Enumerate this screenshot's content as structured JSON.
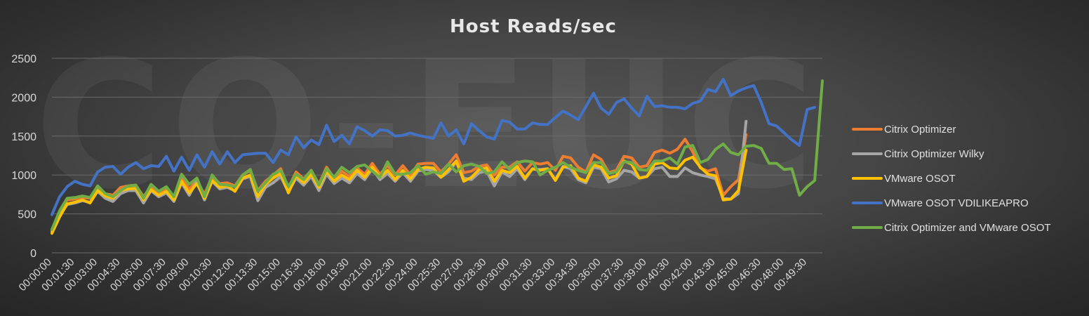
{
  "chart_data": {
    "type": "line",
    "title": "Host Reads/sec",
    "ylim": [
      0,
      2500
    ],
    "yticks": [
      0,
      500,
      1000,
      1500,
      2000,
      2500
    ],
    "xticks": [
      "00:00:00",
      "00:01:30",
      "00:03:00",
      "00:04:30",
      "00:06:00",
      "00:07:30",
      "00:09:00",
      "00:10:30",
      "00:12:00",
      "00:13:30",
      "00:15:00",
      "00:16:30",
      "00:18:00",
      "00:19:30",
      "00:21:00",
      "00:22:30",
      "00:24:00",
      "00:25:30",
      "00:27:00",
      "00:28:30",
      "00:30:00",
      "00:31:30",
      "00:33:00",
      "00:34:30",
      "00:36:00",
      "00:37:30",
      "00:39:00",
      "00:40:30",
      "00:42:00",
      "00:43:30",
      "00:45:00",
      "00:46:30",
      "00:48:00",
      "00:49:30"
    ],
    "x_start_seconds": 0,
    "x_step_seconds": 30,
    "legend_position": "right",
    "grid": true,
    "series": [
      {
        "name": "Citrix Optimizer",
        "color": "#ED7D31",
        "values": [
          280,
          520,
          680,
          690,
          710,
          700,
          830,
          760,
          740,
          840,
          860,
          870,
          720,
          850,
          770,
          830,
          720,
          960,
          820,
          930,
          750,
          980,
          890,
          900,
          860,
          1000,
          1060,
          800,
          920,
          1000,
          1080,
          830,
          1040,
          950,
          1060,
          880,
          1100,
          960,
          1050,
          980,
          1090,
          1010,
          1150,
          1010,
          1120,
          1000,
          1120,
          1000,
          1140,
          1150,
          1150,
          1040,
          1140,
          1260,
          1030,
          1050,
          1110,
          1130,
          1000,
          1100,
          1100,
          1170,
          1050,
          1160,
          1140,
          1160,
          1060,
          1240,
          1220,
          1100,
          1040,
          1260,
          1200,
          1030,
          1060,
          1240,
          1220,
          1100,
          1120,
          1290,
          1320,
          1280,
          1330,
          1460,
          1300,
          1090,
          1050,
          1080,
          740,
          850,
          940,
          1520
        ]
      },
      {
        "name": "Citrix Optimizer Wilky",
        "color": "#A5A5A5",
        "values": [
          270,
          480,
          620,
          640,
          670,
          650,
          790,
          700,
          660,
          760,
          800,
          800,
          640,
          800,
          720,
          770,
          660,
          900,
          740,
          920,
          680,
          920,
          820,
          840,
          800,
          950,
          980,
          670,
          840,
          900,
          980,
          780,
          960,
          870,
          980,
          800,
          1010,
          890,
          960,
          900,
          1020,
          940,
          1080,
          940,
          1020,
          920,
          1030,
          920,
          1050,
          1070,
          1060,
          970,
          1040,
          1170,
          960,
          940,
          1030,
          1050,
          860,
          1040,
          980,
          1080,
          940,
          1080,
          1070,
          1080,
          940,
          1110,
          1080,
          940,
          900,
          1100,
          1080,
          910,
          950,
          1060,
          1040,
          960,
          980,
          1080,
          1100,
          980,
          980,
          1090,
          1030,
          1000,
          980,
          950,
          700,
          690,
          760,
          1690
        ]
      },
      {
        "name": "VMware OSOT",
        "color": "#FFC000",
        "values": [
          250,
          460,
          630,
          650,
          680,
          640,
          800,
          730,
          700,
          800,
          820,
          830,
          680,
          810,
          740,
          790,
          680,
          920,
          770,
          890,
          700,
          930,
          840,
          860,
          790,
          960,
          1000,
          720,
          880,
          960,
          1020,
          770,
          990,
          900,
          1010,
          840,
          1050,
          920,
          1000,
          940,
          1060,
          970,
          1100,
          970,
          1060,
          940,
          1060,
          950,
          1070,
          1100,
          1090,
          970,
          1070,
          1180,
          920,
          970,
          1070,
          1090,
          920,
          1060,
          1030,
          1110,
          960,
          1080,
          1060,
          1080,
          930,
          1100,
          1120,
          960,
          920,
          1130,
          1100,
          960,
          990,
          1180,
          1140,
          960,
          980,
          1140,
          1160,
          1090,
          1080,
          1190,
          1230,
          1100,
          1010,
          990,
          680,
          690,
          800,
          1320
        ]
      },
      {
        "name": "VMware OSOT VDILIKEAPRO",
        "color": "#4472C4",
        "values": [
          490,
          720,
          850,
          920,
          880,
          860,
          1040,
          1100,
          1110,
          1010,
          1100,
          1160,
          1080,
          1120,
          1110,
          1240,
          1050,
          1230,
          1060,
          1260,
          1100,
          1300,
          1140,
          1300,
          1160,
          1260,
          1270,
          1280,
          1280,
          1160,
          1320,
          1260,
          1490,
          1350,
          1450,
          1390,
          1640,
          1430,
          1510,
          1400,
          1620,
          1570,
          1500,
          1580,
          1570,
          1500,
          1510,
          1540,
          1510,
          1490,
          1470,
          1670,
          1500,
          1580,
          1400,
          1660,
          1570,
          1490,
          1460,
          1700,
          1680,
          1590,
          1590,
          1670,
          1650,
          1650,
          1740,
          1820,
          1770,
          1710,
          1880,
          2050,
          1860,
          1780,
          1930,
          1980,
          1860,
          1760,
          2010,
          1880,
          1890,
          1870,
          1870,
          1850,
          1920,
          1950,
          2100,
          2070,
          2230,
          2020,
          2080,
          2120,
          2150,
          1930,
          1660,
          1630,
          1540,
          1450,
          1380,
          1840,
          1870
        ]
      },
      {
        "name": "Citrix Optimizer and VMware OSOT",
        "color": "#70AD47",
        "values": [
          300,
          540,
          700,
          710,
          730,
          710,
          860,
          760,
          720,
          800,
          860,
          870,
          700,
          880,
          790,
          850,
          720,
          1010,
          880,
          960,
          720,
          1000,
          880,
          870,
          850,
          1000,
          1070,
          790,
          900,
          1010,
          1060,
          850,
          1010,
          940,
          1060,
          870,
          1080,
          970,
          1100,
          1030,
          1110,
          1130,
          1050,
          970,
          1170,
          1010,
          1010,
          1030,
          1120,
          1010,
          1040,
          1020,
          1140,
          1040,
          1120,
          1140,
          1110,
          1020,
          1040,
          1170,
          1070,
          1160,
          1180,
          1170,
          1000,
          1060,
          1100,
          1160,
          1100,
          1060,
          1030,
          1160,
          1160,
          1020,
          1040,
          1170,
          1160,
          1070,
          1060,
          1180,
          1180,
          1220,
          1140,
          1360,
          1380,
          1160,
          1200,
          1330,
          1400,
          1290,
          1260,
          1370,
          1380,
          1340,
          1150,
          1150,
          1070,
          1080,
          740,
          850,
          930,
          2210
        ]
      }
    ]
  }
}
